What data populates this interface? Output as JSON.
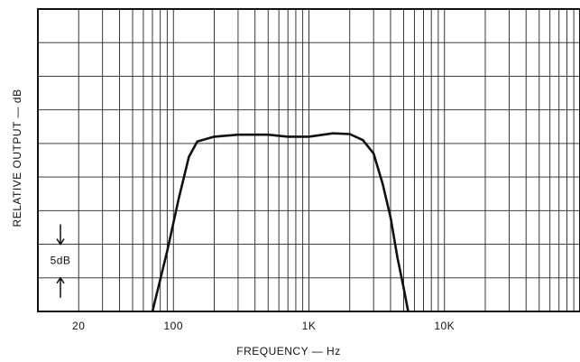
{
  "chart_data": {
    "type": "line",
    "ylabel": "RELATIVE OUTPUT — dB",
    "xlabel": "FREQUENCY — Hz",
    "annotation": "5dB",
    "log_x": true,
    "xlim": [
      10,
      100000
    ],
    "xticks": [
      20,
      100,
      {
        "value": 1000,
        "label": "1K"
      },
      {
        "value": 10000,
        "label": "10K"
      }
    ],
    "xgrid": [
      10,
      20,
      30,
      40,
      50,
      60,
      70,
      80,
      90,
      100,
      200,
      300,
      400,
      500,
      600,
      700,
      800,
      900,
      1000,
      2000,
      3000,
      4000,
      5000,
      6000,
      7000,
      8000,
      9000,
      10000,
      20000,
      30000,
      40000,
      50000,
      60000,
      70000,
      80000,
      90000,
      100000
    ],
    "ylim": [
      0,
      45
    ],
    "ygrid": [
      0,
      5,
      10,
      15,
      20,
      25,
      30,
      35,
      40,
      45
    ],
    "series": [
      {
        "color": "#111111",
        "x": [
          70,
          90,
          110,
          130,
          150,
          200,
          300,
          500,
          700,
          1000,
          1500,
          2000,
          2500,
          3000,
          3500,
          4000,
          4500,
          5000,
          5400
        ],
        "values": [
          0,
          9,
          17,
          23,
          25.3,
          26,
          26.3,
          26.3,
          26,
          26,
          26.5,
          26.4,
          25.5,
          23.5,
          19,
          14,
          8,
          3.5,
          0
        ]
      }
    ]
  }
}
